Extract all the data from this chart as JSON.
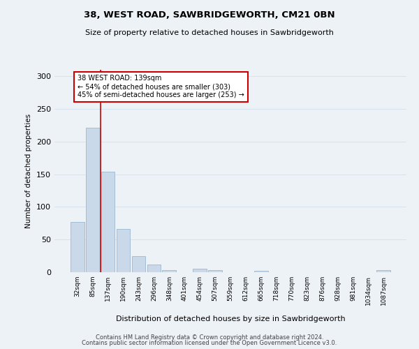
{
  "title1": "38, WEST ROAD, SAWBRIDGEWORTH, CM21 0BN",
  "title2": "Size of property relative to detached houses in Sawbridgeworth",
  "xlabel": "Distribution of detached houses by size in Sawbridgeworth",
  "ylabel": "Number of detached properties",
  "footer1": "Contains HM Land Registry data © Crown copyright and database right 2024.",
  "footer2": "Contains public sector information licensed under the Open Government Licence v3.0.",
  "bin_labels": [
    "32sqm",
    "85sqm",
    "137sqm",
    "190sqm",
    "243sqm",
    "296sqm",
    "348sqm",
    "401sqm",
    "454sqm",
    "507sqm",
    "559sqm",
    "612sqm",
    "665sqm",
    "718sqm",
    "770sqm",
    "823sqm",
    "876sqm",
    "928sqm",
    "981sqm",
    "1034sqm",
    "1087sqm"
  ],
  "bar_values": [
    77,
    221,
    154,
    66,
    25,
    12,
    3,
    0,
    5,
    3,
    0,
    0,
    2,
    0,
    0,
    0,
    0,
    0,
    0,
    0,
    3
  ],
  "bar_color": "#c9d9ea",
  "bar_edge_color": "#9ab8d0",
  "grid_color": "#d8e2ec",
  "vline_color": "#cc0000",
  "annotation_text": "38 WEST ROAD: 139sqm\n← 54% of detached houses are smaller (303)\n45% of semi-detached houses are larger (253) →",
  "annotation_box_color": "#ffffff",
  "annotation_box_edge": "#cc0000",
  "ylim": [
    0,
    310
  ],
  "yticks": [
    0,
    50,
    100,
    150,
    200,
    250,
    300
  ],
  "background_color": "#edf2f7"
}
